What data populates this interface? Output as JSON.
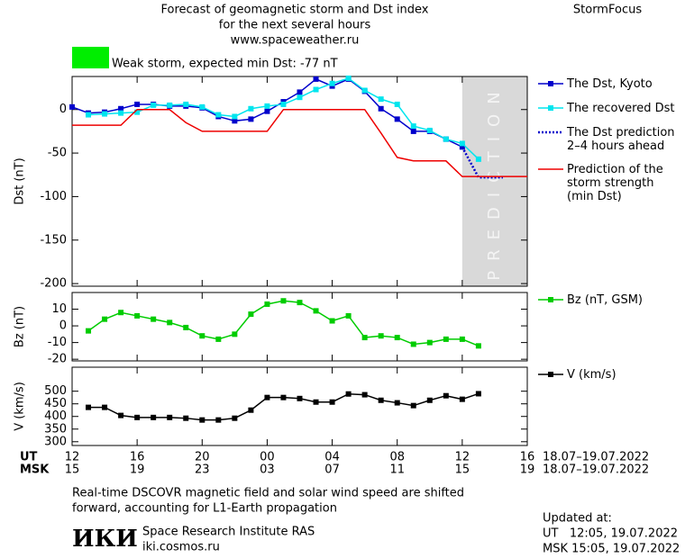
{
  "header": {
    "title_lines": [
      "Forecast of geomagnetic storm and Dst index",
      "for the next several hours",
      "www.spaceweather.ru"
    ],
    "brand": "StormFocus",
    "status": {
      "text": "Weak storm, expected min Dst: -77 nT",
      "color": "#00ee00"
    }
  },
  "chart_data": [
    {
      "type": "line",
      "ylabel": "Dst (nT)",
      "xlim": [
        12,
        40
      ],
      "ylim": [
        -203,
        38
      ],
      "yticks": [
        -200,
        -150,
        -100,
        -50,
        0
      ],
      "shade": {
        "xlim": [
          36,
          40
        ],
        "label": "PREDICTION",
        "color": "#d9d9d9"
      },
      "series": [
        {
          "name": "The Dst, Kyoto",
          "color": "#0000cc",
          "marker": "square",
          "x": [
            12,
            13,
            14,
            15,
            16,
            17,
            18,
            19,
            20,
            21,
            22,
            23,
            24,
            25,
            26,
            27,
            28,
            29,
            30,
            31,
            32,
            33,
            34,
            35,
            36
          ],
          "values": [
            3,
            -4,
            -3,
            1,
            6,
            6,
            4,
            4,
            2,
            -8,
            -13,
            -11,
            -2,
            9,
            20,
            35,
            27,
            35,
            21,
            1,
            -11,
            -25,
            -25,
            -34,
            -43
          ]
        },
        {
          "name": "The recovered Dst",
          "color": "#00e5ee",
          "marker": "square",
          "x": [
            13,
            14,
            15,
            16,
            17,
            18,
            19,
            20,
            21,
            22,
            23,
            24,
            25,
            26,
            27,
            28,
            29,
            30,
            31,
            32,
            33,
            34,
            35,
            36,
            37
          ],
          "values": [
            -6,
            -5,
            -4,
            -3,
            5,
            5,
            6,
            3,
            -6,
            -8,
            1,
            4,
            6,
            14,
            23,
            30,
            36,
            22,
            12,
            6,
            -19,
            -24,
            -34,
            -39,
            -57
          ]
        },
        {
          "name": "The Dst prediction\n2–4 hours ahead",
          "color": "#0000cc",
          "dash": "dotted",
          "x": [
            36,
            37,
            38.5
          ],
          "values": [
            -43,
            -78,
            -78
          ]
        },
        {
          "name": "Prediction of the\nstorm strength\n(min Dst)",
          "color": "#ee0000",
          "x": [
            12,
            15,
            16,
            18,
            19,
            20,
            24,
            25,
            30,
            31,
            32,
            33,
            35,
            36,
            40
          ],
          "values": [
            -18,
            -18,
            0,
            0,
            -15,
            -25,
            -25,
            0,
            0,
            -27,
            -55,
            -59,
            -59,
            -77,
            -77
          ]
        }
      ]
    },
    {
      "type": "line",
      "ylabel": "Bz (nT)",
      "xlim": [
        12,
        40
      ],
      "ylim": [
        -21,
        20
      ],
      "yticks": [
        -20,
        -10,
        0,
        10
      ],
      "series": [
        {
          "name": "Bz (nT, GSM)",
          "color": "#00cc00",
          "marker": "square",
          "x": [
            13,
            14,
            15,
            16,
            17,
            18,
            19,
            20,
            21,
            22,
            23,
            24,
            25,
            26,
            27,
            28,
            29,
            30,
            31,
            32,
            33,
            34,
            35,
            36,
            37
          ],
          "values": [
            -3,
            4,
            8,
            6,
            4,
            2,
            -1,
            -6,
            -8,
            -5,
            7,
            13,
            15,
            14,
            9,
            3,
            6,
            -7,
            -6,
            -7,
            -11,
            -10,
            -8,
            -8,
            -12
          ]
        }
      ]
    },
    {
      "type": "line",
      "ylabel": "V (km/s)",
      "xlim": [
        12,
        40
      ],
      "ylim": [
        285,
        595
      ],
      "yticks": [
        300,
        350,
        400,
        450,
        500
      ],
      "xlabel": "UT",
      "x2label": "MSK",
      "date_range": "18.07–19.07.2022",
      "xticks": [
        {
          "value": 12,
          "label": "12"
        },
        {
          "value": 16,
          "label": "16"
        },
        {
          "value": 20,
          "label": "20"
        },
        {
          "value": 24,
          "label": "00"
        },
        {
          "value": 28,
          "label": "04"
        },
        {
          "value": 32,
          "label": "08"
        },
        {
          "value": 36,
          "label": "12"
        },
        {
          "value": 40,
          "label": "16"
        }
      ],
      "x2ticks": [
        {
          "value": 12,
          "label": "15"
        },
        {
          "value": 16,
          "label": "19"
        },
        {
          "value": 20,
          "label": "23"
        },
        {
          "value": 24,
          "label": "03"
        },
        {
          "value": 28,
          "label": "07"
        },
        {
          "value": 32,
          "label": "11"
        },
        {
          "value": 36,
          "label": "15"
        },
        {
          "value": 40,
          "label": "19"
        }
      ],
      "series": [
        {
          "name": "V (km/s)",
          "color": "#000000",
          "marker": "square",
          "x": [
            13,
            14,
            15,
            16,
            17,
            18,
            19,
            20,
            21,
            22,
            23,
            24,
            25,
            26,
            27,
            28,
            29,
            30,
            31,
            32,
            33,
            34,
            35,
            36,
            37
          ],
          "values": [
            436,
            436,
            404,
            396,
            396,
            396,
            393,
            386,
            386,
            393,
            425,
            475,
            475,
            471,
            457,
            457,
            489,
            486,
            464,
            454,
            443,
            464,
            482,
            468,
            490
          ]
        }
      ]
    }
  ],
  "footer": {
    "note_lines": [
      "Real-time DSCOVR magnetic field and solar wind speed are shifted",
      "forward, accounting for L1-Earth propagation"
    ],
    "logo": "ИКИ",
    "institute": "Space Research Institute RAS",
    "site": "iki.cosmos.ru",
    "updated": {
      "title": "Updated at:",
      "ut": "UT   12:05, 19.07.2022",
      "msk": "MSK 15:05, 19.07.2022"
    }
  }
}
